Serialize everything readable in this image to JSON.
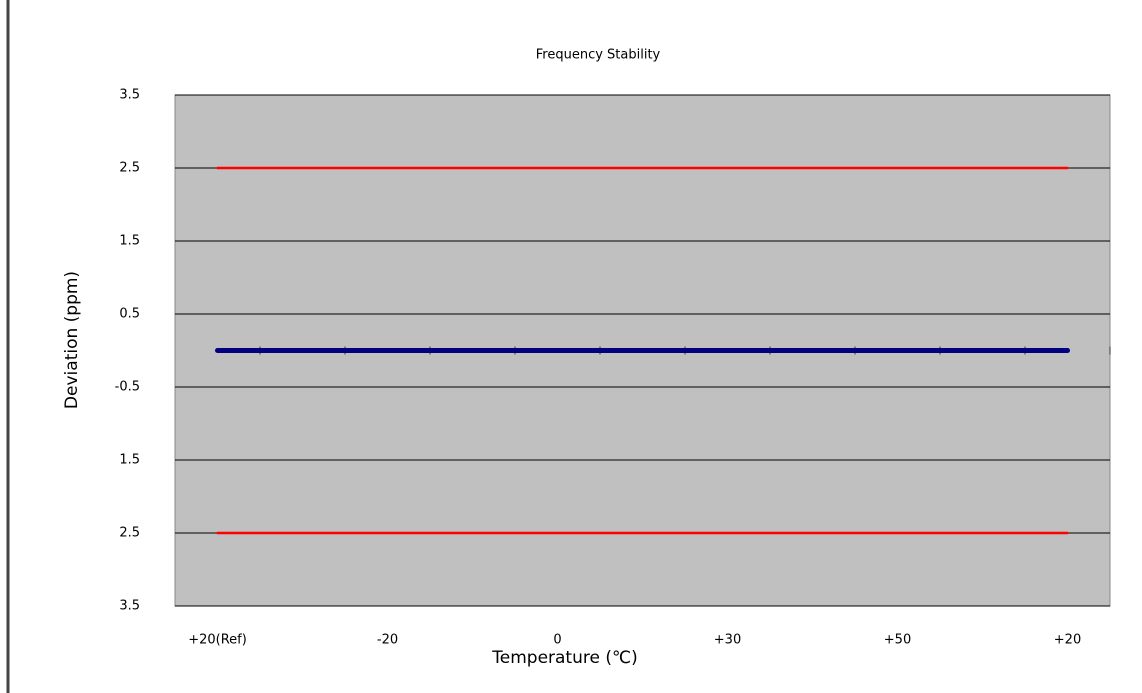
{
  "chart_data": {
    "type": "line",
    "title": "Frequency Stability",
    "x_label": "Temperature (℃)",
    "y_label": "Deviation (ppm)",
    "categories": [
      "+20(Ref)",
      null,
      "-20",
      null,
      "0",
      null,
      "+30",
      null,
      "+50",
      null,
      "+20"
    ],
    "series": [
      {
        "color": "#ff0000",
        "values": [
          2.5,
          2.5,
          2.5,
          2.5,
          2.5,
          2.5,
          2.5,
          2.5,
          2.5,
          2.5,
          2.5
        ]
      },
      {
        "color": "#ff0000",
        "values": [
          -2.5,
          -2.5,
          -2.5,
          -2.5,
          -2.5,
          -2.5,
          -2.5,
          -2.5,
          -2.5,
          -2.5,
          -2.5
        ]
      },
      {
        "color": "#000080",
        "values": [
          0,
          0,
          0,
          0,
          0,
          0,
          0,
          0,
          0,
          0,
          0
        ]
      }
    ],
    "ylim": [
      -3.5,
      3.5
    ],
    "yticks": [
      3.5,
      2.5,
      1.5,
      0.5,
      -0.5,
      {
        "value": -1.5,
        "label": "1.5"
      },
      {
        "value": -2.5,
        "label": "2.5"
      },
      {
        "value": -3.5,
        "label": "3.5"
      }
    ],
    "grid": true,
    "plot_background": "#c0c0c0"
  }
}
